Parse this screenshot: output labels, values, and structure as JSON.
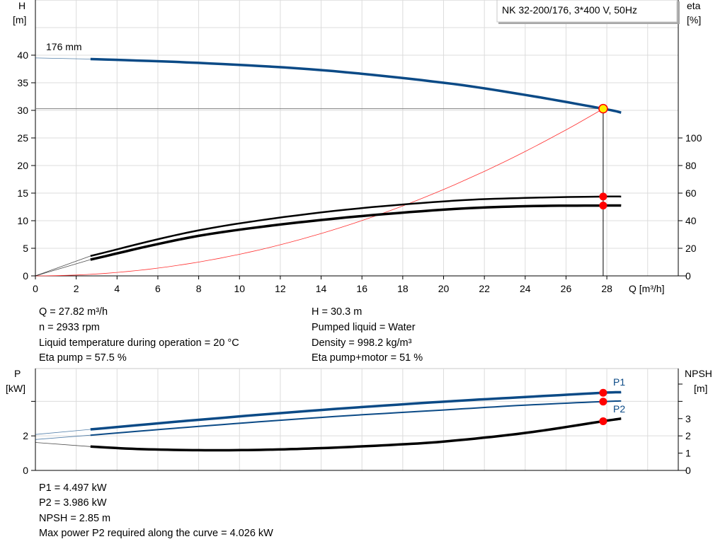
{
  "chart_data": [
    {
      "type": "line",
      "title": "NK 32-200/176, 3*400 V, 50Hz",
      "curve_label": "176 mm",
      "xlabel": "Q [m³/h]",
      "ylabel_left": [
        "H",
        "[m]"
      ],
      "ylabel_right": [
        "eta",
        "[%]"
      ],
      "xlim": [
        0,
        31.5
      ],
      "ylim_left": [
        0,
        50
      ],
      "ylim_right": [
        0,
        200
      ],
      "x_ticks": [
        0,
        2,
        4,
        6,
        8,
        10,
        12,
        14,
        16,
        18,
        20,
        22,
        24,
        26,
        28
      ],
      "y_ticks_left": [
        0,
        5,
        10,
        15,
        20,
        25,
        30,
        35,
        40
      ],
      "y_ticks_right": [
        0,
        20,
        40,
        60,
        80,
        100
      ],
      "grid": true,
      "series": [
        {
          "axis": "left",
          "color": "#0b4a86",
          "width": 3.5,
          "extension": [
            [
              0,
              39.5
            ],
            [
              2.7,
              39.3
            ]
          ],
          "points": [
            [
              2.7,
              39.3
            ],
            [
              8,
              38.6
            ],
            [
              14,
              37.3
            ],
            [
              20,
              35.0
            ],
            [
              24,
              32.8
            ],
            [
              27.82,
              30.3
            ],
            [
              28.7,
              29.6
            ]
          ]
        },
        {
          "axis": "right",
          "color": "#000000",
          "width": 2.5,
          "extension": [
            [
              0,
              0
            ],
            [
              2.7,
              14.4
            ]
          ],
          "points": [
            [
              2.7,
              14.4
            ],
            [
              8,
              33
            ],
            [
              14,
              46
            ],
            [
              20,
              54
            ],
            [
              24,
              56.5
            ],
            [
              27.82,
              57.5
            ],
            [
              28.7,
              57.5
            ]
          ]
        },
        {
          "axis": "right",
          "color": "#000000",
          "width": 3.5,
          "extension": [
            [
              0,
              0
            ],
            [
              2.7,
              11.8
            ]
          ],
          "points": [
            [
              2.7,
              11.8
            ],
            [
              8,
              29
            ],
            [
              14,
              40.5
            ],
            [
              20,
              48
            ],
            [
              24,
              50.5
            ],
            [
              27.82,
              51
            ],
            [
              28.7,
              51
            ]
          ]
        }
      ],
      "system_curve": {
        "color": "#ff3030",
        "q": 27.82,
        "h": 30.3
      },
      "operating_point": {
        "q": 27.82,
        "h": 30.3,
        "eta_pump": 57.5,
        "eta_total": 51,
        "fill": "#ffee00",
        "stroke": "#ff0000"
      }
    },
    {
      "type": "line",
      "ylabel_left": [
        "P",
        "[kW]"
      ],
      "ylabel_right": [
        "NPSH",
        "[m]"
      ],
      "xlim": [
        0,
        31.5
      ],
      "ylim_left": [
        0,
        5.9
      ],
      "ylim_right": [
        0,
        5.9
      ],
      "y_ticks_left": [
        0,
        2,
        4
      ],
      "y_tick_labels_left": [
        "0",
        "2",
        ""
      ],
      "y_ticks_right": [
        0,
        1,
        2,
        3,
        4,
        5
      ],
      "y_tick_labels_right": [
        "0",
        "1",
        "2",
        "3",
        "",
        ""
      ],
      "grid": true,
      "series": [
        {
          "name": "P1",
          "color": "#0b4a86",
          "width": 3.5,
          "extension": [
            [
              0,
              2.08
            ],
            [
              2.7,
              2.375
            ]
          ],
          "points": [
            [
              2.7,
              2.375
            ],
            [
              8,
              2.93
            ],
            [
              14,
              3.5
            ],
            [
              20,
              3.98
            ],
            [
              24,
              4.25
            ],
            [
              27.82,
              4.497
            ],
            [
              28.7,
              4.53
            ]
          ]
        },
        {
          "name": "P2",
          "color": "#0b4a86",
          "width": 2,
          "extension": [
            [
              0,
              1.79
            ],
            [
              2.7,
              2.04
            ]
          ],
          "points": [
            [
              2.7,
              2.04
            ],
            [
              8,
              2.55
            ],
            [
              14,
              3.07
            ],
            [
              20,
              3.5
            ],
            [
              24,
              3.78
            ],
            [
              27.82,
              3.986
            ],
            [
              28.7,
              4.02
            ]
          ]
        },
        {
          "name": "NPSH",
          "color": "#000000",
          "width": 3.5,
          "extension": [
            [
              0,
              1.62
            ],
            [
              2.7,
              1.38
            ]
          ],
          "points": [
            [
              2.7,
              1.38
            ],
            [
              5,
              1.24
            ],
            [
              8,
              1.17
            ],
            [
              11,
              1.19
            ],
            [
              14,
              1.29
            ],
            [
              17,
              1.45
            ],
            [
              20,
              1.67
            ],
            [
              24,
              2.17
            ],
            [
              27.82,
              2.85
            ],
            [
              28.7,
              3.0
            ]
          ]
        }
      ],
      "operating_points": [
        {
          "q": 27.82,
          "value": 4.497
        },
        {
          "q": 27.82,
          "value": 3.986
        },
        {
          "q": 27.82,
          "value": 2.85
        }
      ],
      "dot_color": "#ff0000"
    }
  ],
  "info": {
    "left": [
      "Q = 27.82 m³/h",
      "n = 2933 rpm",
      "Liquid temperature during operation = 20 °C",
      "Eta pump = 57.5 %"
    ],
    "right": [
      "H = 30.3 m",
      "Pumped liquid = Water",
      "Density = 998.2 kg/m³",
      "Eta pump+motor = 51 %"
    ],
    "bottom": [
      "P1 = 4.497 kW",
      "P2 = 3.986 kW",
      "NPSH = 2.85 m",
      "Max power P2 required along the curve = 4.026 kW"
    ]
  }
}
